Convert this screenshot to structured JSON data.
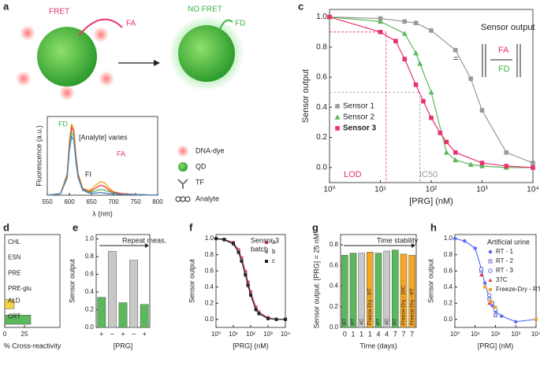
{
  "diagram": {
    "panel": "a",
    "fret": "FRET",
    "fa": "FA",
    "no_fret": "NO FRET",
    "fd": "FD",
    "legend": [
      "DNA-dye",
      "QD",
      "TF",
      "Analyte"
    ]
  },
  "chart_data": [
    {
      "type": "line",
      "xlabel": "λ (nm)",
      "ylabel": "Fluorescence (a.u.)",
      "x": [
        550,
        580,
        595,
        600,
        605,
        610,
        615,
        620,
        630,
        645,
        660,
        670,
        680,
        690,
        700,
        720,
        750,
        800
      ],
      "xlim": [
        550,
        800
      ],
      "xticks": [
        550,
        600,
        650,
        700,
        750,
        800
      ],
      "ylim": [
        0,
        1.1
      ],
      "series": [
        {
          "color": "#f4a020",
          "values": [
            0,
            0.02,
            0.3,
            0.75,
            1.0,
            0.92,
            0.55,
            0.3,
            0.1,
            0.06,
            0.14,
            0.19,
            0.17,
            0.1,
            0.05,
            0.02,
            0.01,
            0
          ]
        },
        {
          "color": "#e53935",
          "values": [
            0,
            0.02,
            0.28,
            0.7,
            0.95,
            0.88,
            0.52,
            0.28,
            0.09,
            0.05,
            0.1,
            0.14,
            0.12,
            0.07,
            0.04,
            0.02,
            0.01,
            0
          ]
        },
        {
          "color": "#5cb85c",
          "values": [
            0,
            0.02,
            0.26,
            0.66,
            0.88,
            0.82,
            0.48,
            0.26,
            0.08,
            0.04,
            0.06,
            0.08,
            0.07,
            0.05,
            0.03,
            0.01,
            0.01,
            0
          ]
        },
        {
          "color": "#4a7fc1",
          "values": [
            0,
            0.02,
            0.24,
            0.62,
            0.82,
            0.77,
            0.45,
            0.24,
            0.07,
            0.03,
            0.03,
            0.04,
            0.03,
            0.02,
            0.02,
            0.01,
            0.01,
            0
          ]
        }
      ],
      "annotations": [
        "FD",
        "[Analyte] varies",
        "FA",
        "FI"
      ]
    },
    {
      "type": "line",
      "panel": "c",
      "xlabel": "[PRG] (nM)",
      "ylabel": "Sensor output",
      "xlog": true,
      "xlim": [
        1,
        10000
      ],
      "xticks": [
        {
          "value": 1,
          "label": "10⁰"
        },
        {
          "value": 10,
          "label": "10¹"
        },
        {
          "value": 100,
          "label": "10²"
        },
        {
          "value": 1000,
          "label": "10³"
        },
        {
          "value": 10000,
          "label": "10⁴"
        }
      ],
      "ylim": [
        -0.1,
        1.05
      ],
      "yticks": [
        {
          "value": 0,
          "label": "0.0"
        },
        0.2,
        0.4,
        0.6,
        0.8,
        {
          "value": 1,
          "label": "1.0"
        }
      ],
      "legend": "lower left",
      "series": [
        {
          "name": "Sensor 1",
          "color": "#999999",
          "marker": "square",
          "x": [
            1,
            10,
            30,
            50,
            100,
            300,
            600,
            1000,
            3000,
            10000
          ],
          "values": [
            1.0,
            0.99,
            0.97,
            0.96,
            0.91,
            0.78,
            0.59,
            0.38,
            0.1,
            0.03
          ]
        },
        {
          "name": "Sensor 2",
          "color": "#5cb85c",
          "marker": "triangle",
          "x": [
            1,
            10,
            30,
            50,
            60,
            100,
            200,
            300,
            600,
            1000,
            3000,
            10000
          ],
          "values": [
            1.0,
            0.97,
            0.89,
            0.76,
            0.69,
            0.5,
            0.1,
            0.05,
            0.02,
            0.01,
            0.0,
            0.0
          ]
        },
        {
          "name": "Sensor 3",
          "color": "#e8336e",
          "marker": "square",
          "x": [
            1,
            10,
            20,
            30,
            50,
            70,
            100,
            150,
            200,
            300,
            1000,
            3000,
            10000
          ],
          "values": [
            1.0,
            0.9,
            0.84,
            0.72,
            0.55,
            0.44,
            0.33,
            0.23,
            0.17,
            0.1,
            0.03,
            0.01,
            0.0
          ]
        }
      ],
      "reference_lines": [
        {
          "x": 13,
          "y": 0.9,
          "color": "#e8336e"
        },
        {
          "x": 60,
          "y": 0.5,
          "color": "#999999"
        }
      ],
      "annotations": [
        "Sensor output",
        "=",
        "FA",
        "FD",
        "LOD",
        "IC50"
      ]
    },
    {
      "type": "bar",
      "panel": "d",
      "horizontal": true,
      "xlabel": "% Cross-reactivity",
      "categories": [
        "CHL",
        "ESN",
        "PRE",
        "PRE-glu",
        "ALD",
        "CRT"
      ],
      "values": [
        0,
        0,
        0,
        0,
        12,
        33
      ],
      "colors": [
        "#5cb85c",
        "#5cb85c",
        "#5cb85c",
        "#5cb85c",
        "#f2d04a",
        "#5cb85c"
      ],
      "xlim": [
        0,
        70
      ],
      "xticks": [
        0,
        25
      ]
    },
    {
      "type": "bar",
      "panel": "e",
      "xlabel": "[PRG]",
      "ylabel": "Sensor output",
      "categories": [
        "+",
        "−",
        "+",
        "−",
        "+"
      ],
      "values": [
        0.34,
        0.86,
        0.28,
        0.76,
        0.26
      ],
      "colors": [
        "#5cb85c",
        "#c8c8c8",
        "#5cb85c",
        "#c8c8c8",
        "#5cb85c"
      ],
      "ylim": [
        0,
        1.05
      ],
      "yticks": [
        {
          "value": 0,
          "label": "0.0"
        },
        0.2,
        0.4,
        0.6,
        0.8,
        {
          "value": 1,
          "label": "1.0"
        }
      ],
      "annotations": [
        "Repeat meas."
      ]
    },
    {
      "type": "line",
      "panel": "f",
      "xlabel": "[PRG] (nM)",
      "ylabel": "Sensor output",
      "xlog": true,
      "xlim": [
        1,
        10000
      ],
      "xticks": [
        {
          "value": 1,
          "label": "10⁰"
        },
        {
          "value": 10,
          "label": "10¹"
        },
        {
          "value": 100,
          "label": "10²"
        },
        {
          "value": 1000,
          "label": "10³"
        },
        {
          "value": 10000,
          "label": "10⁴"
        }
      ],
      "ylim": [
        -0.1,
        1.05
      ],
      "yticks": [
        {
          "value": 0,
          "label": "0.0"
        },
        0.2,
        0.4,
        0.6,
        0.8,
        {
          "value": 1,
          "label": "1.0"
        }
      ],
      "legend": "upper right",
      "x": [
        1,
        3,
        10,
        20,
        30,
        50,
        70,
        100,
        200,
        300,
        1000,
        3000,
        10000
      ],
      "series": [
        {
          "name": "a",
          "color": "#e8336e",
          "marker": "square",
          "values": [
            1.0,
            0.99,
            0.95,
            0.86,
            0.76,
            0.59,
            0.46,
            0.34,
            0.15,
            0.09,
            0.02,
            0.0,
            0.0
          ]
        },
        {
          "name": "b",
          "color": "#999999",
          "marker": "circle",
          "values": [
            1.0,
            0.98,
            0.93,
            0.84,
            0.73,
            0.56,
            0.43,
            0.31,
            0.13,
            0.08,
            0.01,
            0.0,
            0.0
          ]
        },
        {
          "name": "c",
          "color": "#222222",
          "marker": "square",
          "values": [
            1.0,
            0.99,
            0.94,
            0.83,
            0.72,
            0.55,
            0.42,
            0.3,
            0.12,
            0.07,
            0.01,
            0.0,
            0.0
          ]
        }
      ],
      "annotations": [
        "Sensor 3",
        "batch"
      ]
    },
    {
      "type": "bar",
      "panel": "g",
      "xlabel": "Time (days)",
      "ylabel": "Sensor output: [PRG] = 25 nM",
      "categories": [
        "0",
        "1",
        "1",
        "1",
        "4",
        "4",
        "7",
        "7",
        "7"
      ],
      "values": [
        0.7,
        0.72,
        0.72,
        0.73,
        0.72,
        0.74,
        0.75,
        0.71,
        0.7
      ],
      "colors": [
        "#5cb85c",
        "#5cb85c",
        "#c8c8c8",
        "#f5a623",
        "#5cb85c",
        "#c8c8c8",
        "#5cb85c",
        "#f5a623",
        "#f5a623"
      ],
      "bar_labels": [
        "RT",
        "RT",
        "4C",
        "Freeze-Dry - RT",
        "RT",
        "4C",
        "RT",
        "Freeze-Dry - 20C",
        "Freeze-Dry - RT"
      ],
      "ylim": [
        0,
        0.9
      ],
      "yticks": [
        {
          "value": 0,
          "label": "0.0"
        },
        0.2,
        0.4,
        0.6,
        0.8
      ],
      "annotations": [
        "Time stability"
      ]
    },
    {
      "type": "line",
      "panel": "h",
      "xlabel": "[PRG] (nM)",
      "ylabel": "Sensor output",
      "xlog": true,
      "xlim": [
        1,
        10000
      ],
      "xticks": [
        {
          "value": 1,
          "label": "10⁰"
        },
        {
          "value": 10,
          "label": "10¹"
        },
        {
          "value": 100,
          "label": "10²"
        },
        {
          "value": 1000,
          "label": "10³"
        },
        {
          "value": 10000,
          "label": "10⁴"
        }
      ],
      "ylim": [
        -0.1,
        1.05
      ],
      "yticks": [
        {
          "value": 0,
          "label": "0.0"
        },
        0.2,
        0.4,
        0.6,
        0.8,
        {
          "value": 1,
          "label": "1.0"
        }
      ],
      "legend": "upper right",
      "legend_title": "Artificial urine",
      "series": [
        {
          "name": "RT - 1",
          "color": "#5b6ef5",
          "marker": "circle",
          "x": [
            1,
            3,
            10,
            20,
            30,
            50,
            70,
            100,
            200,
            1000,
            10000
          ],
          "values": [
            1.0,
            0.97,
            0.88,
            0.63,
            0.45,
            0.27,
            0.17,
            0.1,
            0.04,
            -0.03,
            0.0
          ]
        },
        {
          "name": "RT - 2",
          "color": "#7a7acc",
          "marker": "xsquare",
          "line": false,
          "x": [
            20,
            50,
            70,
            100
          ],
          "values": [
            0.6,
            0.25,
            0.2,
            0.05
          ]
        },
        {
          "name": "RT - 3",
          "color": "#5b6ef5",
          "marker": "open",
          "line": false,
          "x": [
            20,
            50,
            100
          ],
          "values": [
            0.62,
            0.3,
            0.12
          ]
        },
        {
          "name": "37C",
          "color": "#e53935",
          "marker": "triangle",
          "line": false,
          "x": [
            20,
            50
          ],
          "values": [
            0.55,
            0.2
          ]
        },
        {
          "name": "Freeze-Dry - RT",
          "color": "#f5a623",
          "marker": "square",
          "line": false,
          "x": [
            30,
            60,
            100,
            10000
          ],
          "values": [
            0.4,
            0.22,
            0.15,
            0.0
          ]
        }
      ]
    }
  ]
}
